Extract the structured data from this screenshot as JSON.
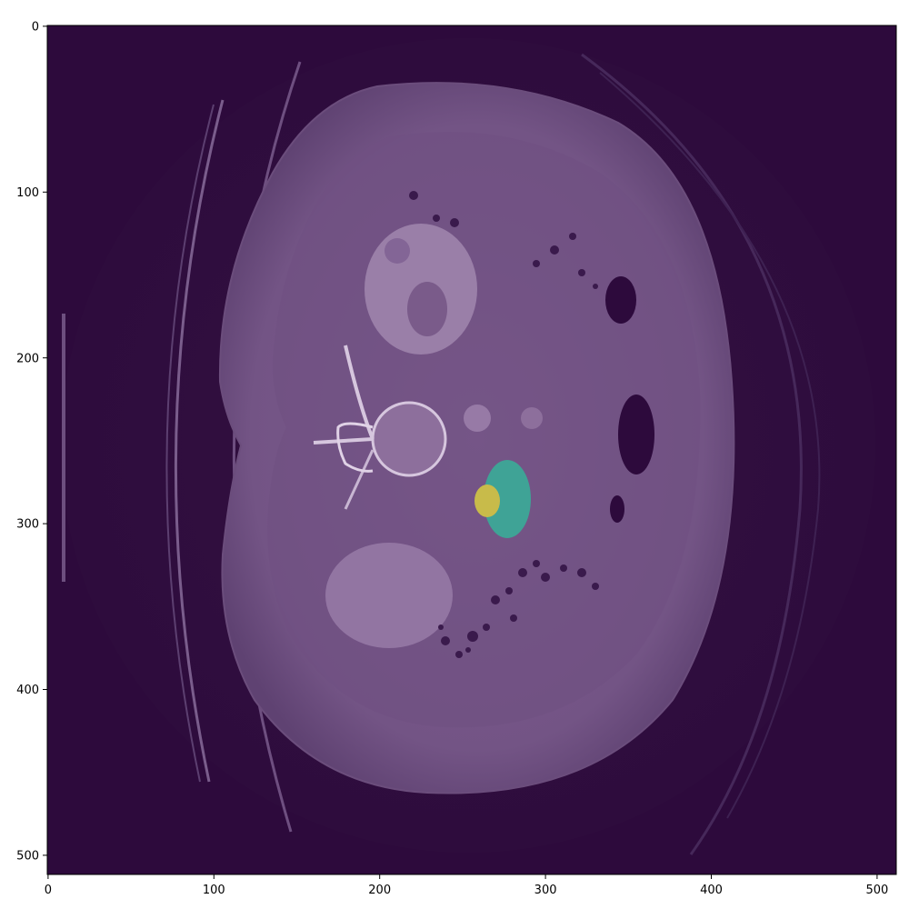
{
  "figure": {
    "colormap": [
      "#2d0a3c",
      "#5a3f6e",
      "#7c5b8c",
      "#4aa39a",
      "#c9b94c"
    ],
    "overlay_colors": {
      "ring_region": "#3fa396",
      "core_region": "#c8bb4a",
      "background": "#2d0a3c"
    }
  },
  "axes": {
    "x_ticks": [
      "0",
      "100",
      "200",
      "300",
      "400",
      "500"
    ],
    "y_ticks": [
      "0",
      "100",
      "200",
      "300",
      "400",
      "500"
    ]
  },
  "chart_data": {
    "type": "heatmap",
    "title": "",
    "xlabel": "",
    "ylabel": "",
    "xlim": [
      0,
      512
    ],
    "ylim": [
      512,
      0
    ],
    "image_size": [
      512,
      512
    ],
    "x_tick_values": [
      0,
      100,
      200,
      300,
      400,
      500
    ],
    "y_tick_values": [
      0,
      100,
      200,
      300,
      400,
      500
    ],
    "content": "axial CT slice with segmentation overlay"
  }
}
